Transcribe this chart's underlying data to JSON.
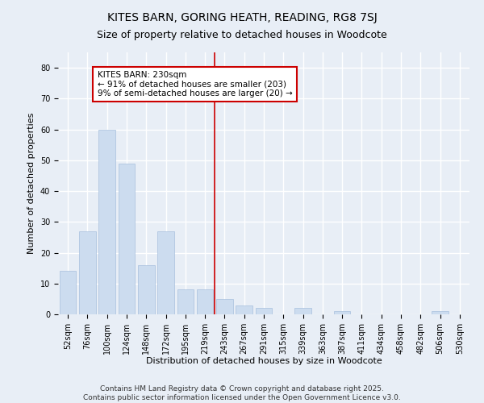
{
  "title": "KITES BARN, GORING HEATH, READING, RG8 7SJ",
  "subtitle": "Size of property relative to detached houses in Woodcote",
  "xlabel": "Distribution of detached houses by size in Woodcote",
  "ylabel": "Number of detached properties",
  "categories": [
    "52sqm",
    "76sqm",
    "100sqm",
    "124sqm",
    "148sqm",
    "172sqm",
    "195sqm",
    "219sqm",
    "243sqm",
    "267sqm",
    "291sqm",
    "315sqm",
    "339sqm",
    "363sqm",
    "387sqm",
    "411sqm",
    "434sqm",
    "458sqm",
    "482sqm",
    "506sqm",
    "530sqm"
  ],
  "values": [
    14,
    27,
    60,
    49,
    16,
    27,
    8,
    8,
    5,
    3,
    2,
    0,
    2,
    0,
    1,
    0,
    0,
    0,
    0,
    1,
    0
  ],
  "bar_color": "#ccdcef",
  "bar_edge_color": "#a8c0dd",
  "ylim": [
    0,
    85
  ],
  "yticks": [
    0,
    10,
    20,
    30,
    40,
    50,
    60,
    70,
    80
  ],
  "marker_index": 7.5,
  "annotation_title": "KITES BARN: 230sqm",
  "annotation_line1": "← 91% of detached houses are smaller (203)",
  "annotation_line2": "9% of semi-detached houses are larger (20) →",
  "footer_line1": "Contains HM Land Registry data © Crown copyright and database right 2025.",
  "footer_line2": "Contains public sector information licensed under the Open Government Licence v3.0.",
  "background_color": "#e8eef6",
  "plot_background_color": "#e8eef6",
  "grid_color": "#ffffff",
  "marker_line_color": "#cc0000",
  "annotation_box_color": "#cc0000",
  "title_fontsize": 10,
  "subtitle_fontsize": 9,
  "axis_label_fontsize": 8,
  "tick_fontsize": 7,
  "annotation_fontsize": 7.5,
  "footer_fontsize": 6.5
}
